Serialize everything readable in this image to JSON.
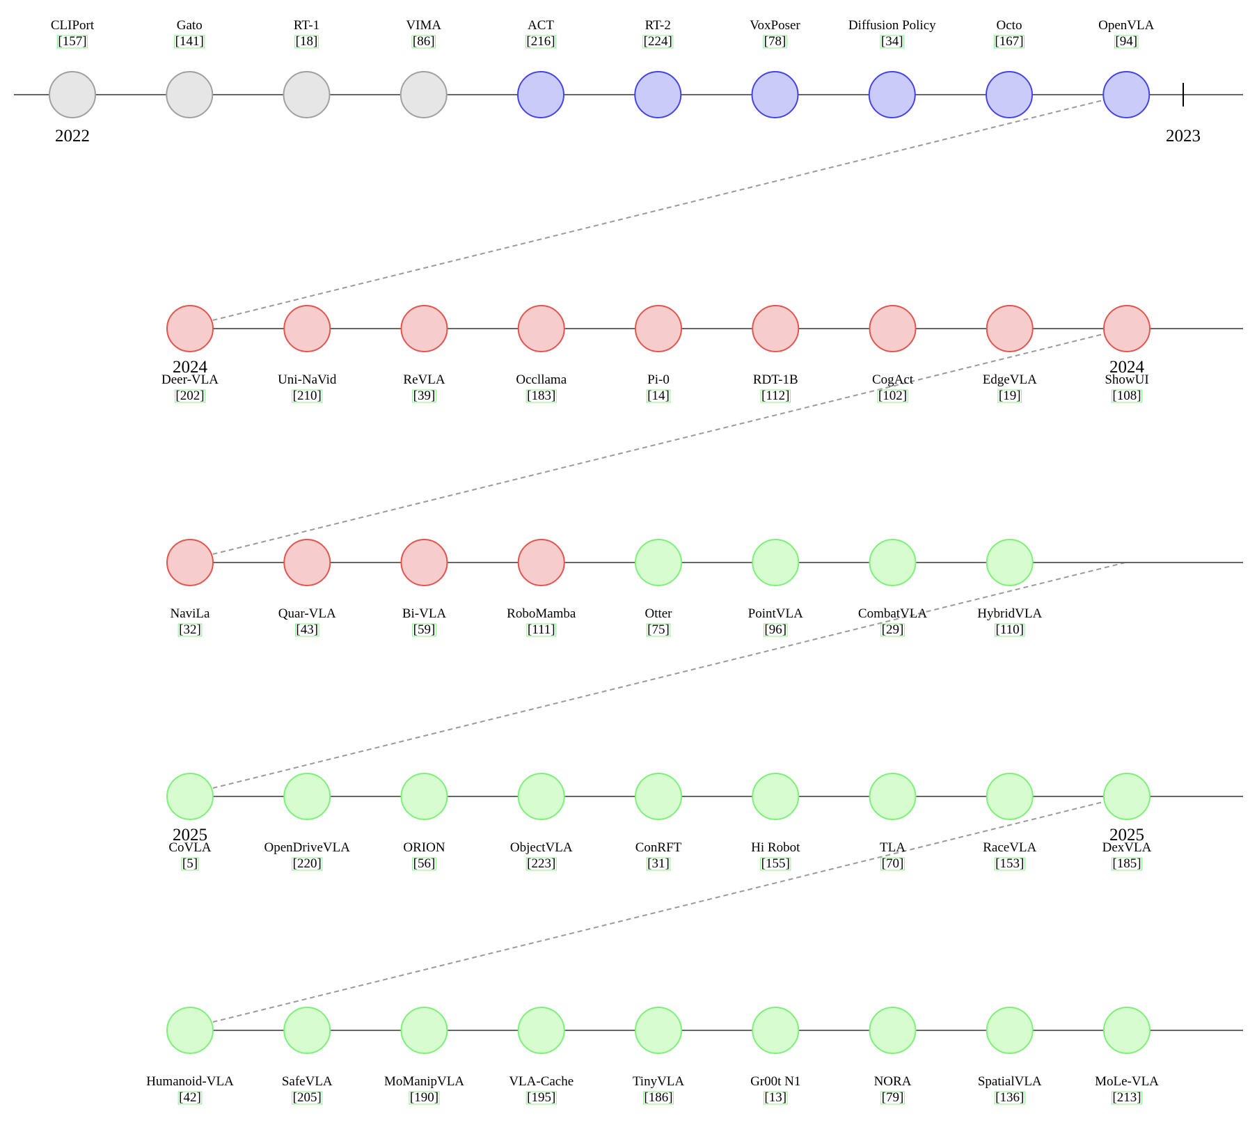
{
  "colors": {
    "gray": {
      "fill": "#e6e6e6",
      "stroke": "#a0a0a0"
    },
    "blue": {
      "fill": "#cbcbfa",
      "stroke": "#4444e6"
    },
    "red": {
      "fill": "#f7cccc",
      "stroke": "#e2554e"
    },
    "green": {
      "fill": "#d6fcd0",
      "stroke": "#7ef07a"
    }
  },
  "rows": [
    {
      "label_position": "above",
      "nodes": [
        {
          "name": "CLIPort",
          "ref": "[157]",
          "color": "gray"
        },
        {
          "name": "Gato",
          "ref": "[141]",
          "color": "gray"
        },
        {
          "name": "RT-1",
          "ref": "[18]",
          "color": "gray"
        },
        {
          "name": "VIMA",
          "ref": "[86]",
          "color": "gray"
        },
        {
          "name": "ACT",
          "ref": "[216]",
          "color": "blue"
        },
        {
          "name": "RT-2",
          "ref": "[224]",
          "color": "blue"
        },
        {
          "name": "VoxPoser",
          "ref": "[78]",
          "color": "blue"
        },
        {
          "name": "Diffusion Policy",
          "ref": "[34]",
          "color": "blue"
        },
        {
          "name": "Octo",
          "ref": "[167]",
          "color": "blue"
        },
        {
          "name": "OpenVLA",
          "ref": "[94]",
          "color": "blue"
        }
      ],
      "years": [
        {
          "text": "2022",
          "anchor": 0
        },
        {
          "text": "2023",
          "anchor": "tick"
        }
      ]
    },
    {
      "label_position": "below",
      "nodes": [
        {
          "name": "Deer-VLA",
          "ref": "[202]",
          "color": "red"
        },
        {
          "name": "Uni-NaVid",
          "ref": "[210]",
          "color": "red"
        },
        {
          "name": "ReVLA",
          "ref": "[39]",
          "color": "red"
        },
        {
          "name": "Occllama",
          "ref": "[183]",
          "color": "red"
        },
        {
          "name": "Pi-0",
          "ref": "[14]",
          "color": "red"
        },
        {
          "name": "RDT-1B",
          "ref": "[112]",
          "color": "red"
        },
        {
          "name": "CogAct",
          "ref": "[102]",
          "color": "red"
        },
        {
          "name": "EdgeVLA",
          "ref": "[19]",
          "color": "red"
        },
        {
          "name": "ShowUI",
          "ref": "[108]",
          "color": "red"
        }
      ],
      "years": [
        {
          "text": "2024",
          "anchor": 0
        },
        {
          "text": "2024",
          "anchor": 8
        }
      ]
    },
    {
      "label_position": "below",
      "nodes": [
        {
          "name": "NaviLa",
          "ref": "[32]",
          "color": "red"
        },
        {
          "name": "Quar-VLA",
          "ref": "[43]",
          "color": "red"
        },
        {
          "name": "Bi-VLA",
          "ref": "[59]",
          "color": "red"
        },
        {
          "name": "RoboMamba",
          "ref": "[111]",
          "color": "red"
        },
        {
          "name": "Otter",
          "ref": "[75]",
          "color": "green"
        },
        {
          "name": "PointVLA",
          "ref": "[96]",
          "color": "green"
        },
        {
          "name": "CombatVLA",
          "ref": "[29]",
          "color": "green"
        },
        {
          "name": "HybridVLA",
          "ref": "[110]",
          "color": "green"
        }
      ],
      "years": []
    },
    {
      "label_position": "below",
      "nodes": [
        {
          "name": "CoVLA",
          "ref": "[5]",
          "color": "green"
        },
        {
          "name": "OpenDriveVLA",
          "ref": "[220]",
          "color": "green"
        },
        {
          "name": "ORION",
          "ref": "[56]",
          "color": "green"
        },
        {
          "name": "ObjectVLA",
          "ref": "[223]",
          "color": "green"
        },
        {
          "name": "ConRFT",
          "ref": "[31]",
          "color": "green"
        },
        {
          "name": "Hi Robot",
          "ref": "[155]",
          "color": "green"
        },
        {
          "name": "TLA",
          "ref": "[70]",
          "color": "green"
        },
        {
          "name": "RaceVLA",
          "ref": "[153]",
          "color": "green"
        },
        {
          "name": "DexVLA",
          "ref": "[185]",
          "color": "green"
        }
      ],
      "years": [
        {
          "text": "2025",
          "anchor": 0
        },
        {
          "text": "2025",
          "anchor": 8
        }
      ]
    },
    {
      "label_position": "below",
      "nodes": [
        {
          "name": "Humanoid-VLA",
          "ref": "[42]",
          "color": "green"
        },
        {
          "name": "SafeVLA",
          "ref": "[205]",
          "color": "green"
        },
        {
          "name": "MoManipVLA",
          "ref": "[190]",
          "color": "green"
        },
        {
          "name": "VLA-Cache",
          "ref": "[195]",
          "color": "green"
        },
        {
          "name": "TinyVLA",
          "ref": "[186]",
          "color": "green"
        },
        {
          "name": "Gr00t N1",
          "ref": "[13]",
          "color": "green"
        },
        {
          "name": "NORA",
          "ref": "[79]",
          "color": "green"
        },
        {
          "name": "SpatialVLA",
          "ref": "[136]",
          "color": "green"
        },
        {
          "name": "MoLe-VLA",
          "ref": "[213]",
          "color": "green"
        }
      ],
      "years": []
    }
  ]
}
